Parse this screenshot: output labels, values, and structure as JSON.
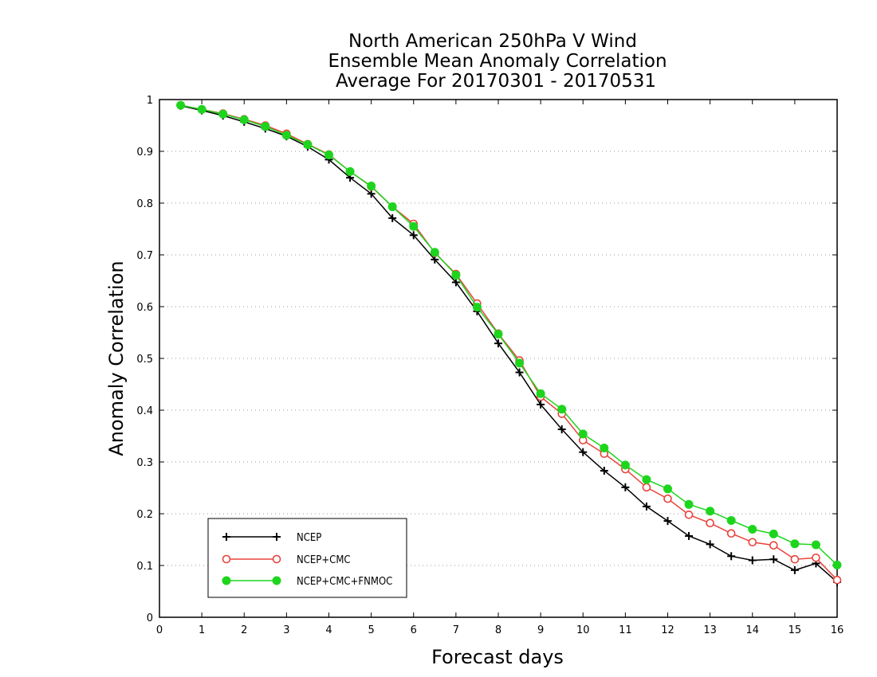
{
  "chart_data": {
    "type": "line",
    "title": [
      "North American 250hPa V Wind",
      "Ensemble Mean Anomaly Correlation",
      "Average For 20170301 - 20170531"
    ],
    "xlabel": "Forecast days",
    "ylabel": "Anomaly Correlation",
    "xlim": [
      0,
      16
    ],
    "ylim": [
      0,
      1
    ],
    "xticks": [
      "0",
      "1",
      "2",
      "3",
      "4",
      "5",
      "6",
      "7",
      "8",
      "9",
      "10",
      "11",
      "12",
      "13",
      "14",
      "15",
      "16"
    ],
    "yticks": [
      "0",
      "0.1",
      "0.2",
      "0.3",
      "0.4",
      "0.5",
      "0.6",
      "0.7",
      "0.8",
      "0.9",
      "1"
    ],
    "grid": "horizontal-dotted",
    "legend_position": "bottom-left",
    "x": [
      0.5,
      1,
      1.5,
      2,
      2.5,
      3,
      3.5,
      4,
      4.5,
      5,
      5.5,
      6,
      6.5,
      7,
      7.5,
      8,
      8.5,
      9,
      9.5,
      10,
      10.5,
      11,
      11.5,
      12,
      12.5,
      13,
      13.5,
      14,
      14.5,
      15,
      15.5,
      16
    ],
    "series": [
      {
        "name": "NCEP",
        "color": "#000000",
        "marker": "plus",
        "values": [
          0.988,
          0.979,
          0.969,
          0.957,
          0.944,
          0.929,
          0.909,
          0.884,
          0.849,
          0.818,
          0.771,
          0.738,
          0.691,
          0.647,
          0.591,
          0.529,
          0.473,
          0.411,
          0.363,
          0.319,
          0.283,
          0.251,
          0.214,
          0.186,
          0.157,
          0.141,
          0.118,
          0.11,
          0.112,
          0.091,
          0.104,
          0.068
        ]
      },
      {
        "name": "NCEP+CMC",
        "color": "#e8433c",
        "marker": "open-circle",
        "values": [
          0.989,
          0.981,
          0.973,
          0.962,
          0.95,
          0.934,
          0.914,
          0.894,
          0.861,
          0.832,
          0.793,
          0.76,
          0.704,
          0.663,
          0.606,
          0.548,
          0.496,
          0.426,
          0.393,
          0.342,
          0.316,
          0.286,
          0.251,
          0.229,
          0.198,
          0.182,
          0.162,
          0.145,
          0.139,
          0.112,
          0.115,
          0.072
        ]
      },
      {
        "name": "NCEP+CMC+FNMOC",
        "color": "#1ed51e",
        "marker": "filled-circle",
        "values": [
          0.989,
          0.981,
          0.972,
          0.961,
          0.948,
          0.931,
          0.913,
          0.893,
          0.861,
          0.833,
          0.793,
          0.755,
          0.705,
          0.661,
          0.599,
          0.547,
          0.491,
          0.432,
          0.402,
          0.354,
          0.327,
          0.294,
          0.266,
          0.248,
          0.218,
          0.205,
          0.187,
          0.17,
          0.161,
          0.142,
          0.14,
          0.101
        ]
      }
    ]
  }
}
